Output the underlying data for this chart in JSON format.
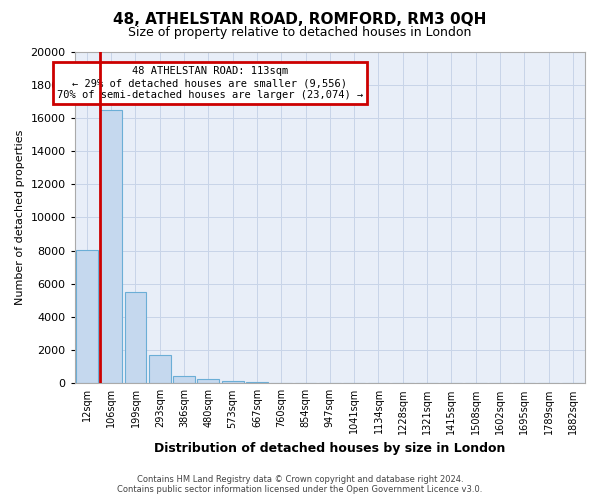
{
  "title": "48, ATHELSTAN ROAD, ROMFORD, RM3 0QH",
  "subtitle": "Size of property relative to detached houses in London",
  "xlabel": "Distribution of detached houses by size in London",
  "ylabel": "Number of detached properties",
  "categories": [
    "12sqm",
    "106sqm",
    "199sqm",
    "293sqm",
    "386sqm",
    "480sqm",
    "573sqm",
    "667sqm",
    "760sqm",
    "854sqm",
    "947sqm",
    "1041sqm",
    "1134sqm",
    "1228sqm",
    "1321sqm",
    "1415sqm",
    "1508sqm",
    "1602sqm",
    "1695sqm",
    "1789sqm",
    "1882sqm"
  ],
  "values": [
    8050,
    16500,
    5500,
    1700,
    420,
    260,
    150,
    100,
    0,
    0,
    0,
    0,
    0,
    0,
    0,
    0,
    0,
    0,
    0,
    0,
    0
  ],
  "bar_color": "#c5d8ee",
  "bar_edge_color": "#6baed6",
  "grid_color": "#c8d4e8",
  "background_color": "#e8eef8",
  "annotation_box_color": "#ffffff",
  "annotation_border_color": "#cc0000",
  "property_line_color": "#cc0000",
  "annotation_line1": "48 ATHELSTAN ROAD: 113sqm",
  "annotation_line2": "← 29% of detached houses are smaller (9,556)",
  "annotation_line3": "70% of semi-detached houses are larger (23,074) →",
  "ylim": [
    0,
    20000
  ],
  "yticks": [
    0,
    2000,
    4000,
    6000,
    8000,
    10000,
    12000,
    14000,
    16000,
    18000,
    20000
  ],
  "footer_line1": "Contains HM Land Registry data © Crown copyright and database right 2024.",
  "footer_line2": "Contains public sector information licensed under the Open Government Licence v3.0."
}
